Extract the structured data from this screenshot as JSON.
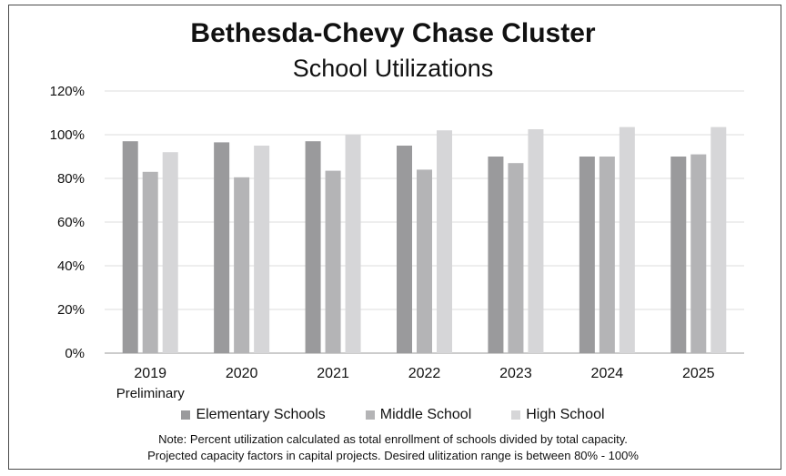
{
  "chart_data": {
    "type": "bar",
    "title": "Bethesda-Chevy Chase Cluster",
    "subtitle": "School Utilizations",
    "categories": [
      "2019",
      "2020",
      "2021",
      "2022",
      "2023",
      "2024",
      "2025"
    ],
    "category_sublabels": [
      "Preliminary",
      "",
      "",
      "",
      "",
      "",
      ""
    ],
    "series": [
      {
        "name": "Elementary Schools",
        "color": "#9a9a9c",
        "values": [
          97,
          96.5,
          97,
          95,
          90,
          90,
          90
        ]
      },
      {
        "name": "Middle School",
        "color": "#b4b4b6",
        "values": [
          83,
          80.5,
          83.5,
          84,
          87,
          90,
          91
        ]
      },
      {
        "name": "High School",
        "color": "#d6d6d8",
        "values": [
          92,
          95,
          100,
          102,
          102.5,
          103.5,
          103.5
        ]
      }
    ],
    "yticks": [
      "0%",
      "20%",
      "40%",
      "60%",
      "80%",
      "100%",
      "120%"
    ],
    "ylim": [
      0,
      120
    ],
    "grid": true,
    "legend_position": "bottom",
    "notes": [
      "Note:  Percent utilization calculated as total enrollment of schools divided by total capacity.",
      "Projected capacity factors in capital projects. Desired ulitization range is between 80% - 100%"
    ]
  }
}
